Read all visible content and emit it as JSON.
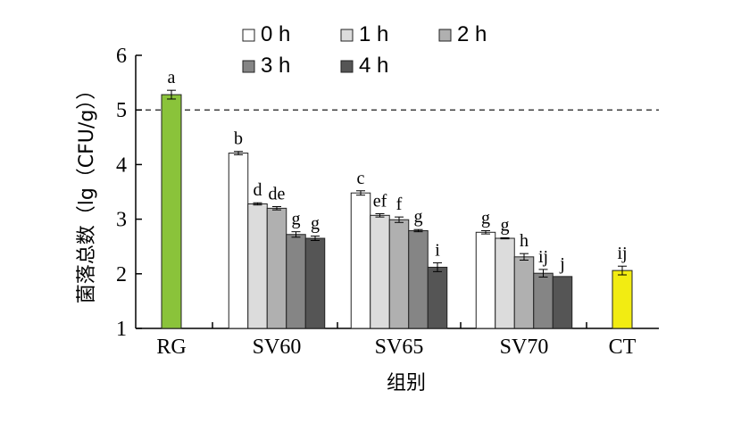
{
  "chart_data": {
    "type": "bar",
    "xlabel": "组别",
    "ylabel": "菌落总数（lg（CFU/g））",
    "ylim": [
      1,
      6
    ],
    "yticks": [
      1,
      2,
      3,
      4,
      5,
      6
    ],
    "reference_line": {
      "y": 5,
      "style": "dashed"
    },
    "legend_position": "top",
    "groups": [
      {
        "label": "RG",
        "bars": [
          {
            "series": "RG",
            "value": 5.28,
            "error": 0.08,
            "sig": "a",
            "color": "#8ac33a"
          }
        ]
      },
      {
        "label": "SV60",
        "bars": [
          {
            "series": "0 h",
            "value": 4.21,
            "error": 0.03,
            "sig": "b"
          },
          {
            "series": "1 h",
            "value": 3.28,
            "error": 0.02,
            "sig": "d"
          },
          {
            "series": "2 h",
            "value": 3.2,
            "error": 0.03,
            "sig": "de"
          },
          {
            "series": "3 h",
            "value": 2.72,
            "error": 0.05,
            "sig": "g"
          },
          {
            "series": "4 h",
            "value": 2.65,
            "error": 0.04,
            "sig": "g"
          }
        ]
      },
      {
        "label": "SV65",
        "bars": [
          {
            "series": "0 h",
            "value": 3.48,
            "error": 0.04,
            "sig": "c"
          },
          {
            "series": "1 h",
            "value": 3.07,
            "error": 0.03,
            "sig": "ef"
          },
          {
            "series": "2 h",
            "value": 2.99,
            "error": 0.05,
            "sig": "f"
          },
          {
            "series": "3 h",
            "value": 2.79,
            "error": 0.02,
            "sig": "g"
          },
          {
            "series": "4 h",
            "value": 2.12,
            "error": 0.08,
            "sig": "i"
          }
        ]
      },
      {
        "label": "SV70",
        "bars": [
          {
            "series": "0 h",
            "value": 2.76,
            "error": 0.03,
            "sig": "g"
          },
          {
            "series": "1 h",
            "value": 2.65,
            "error": 0.01,
            "sig": "g"
          },
          {
            "series": "2 h",
            "value": 2.31,
            "error": 0.06,
            "sig": "h"
          },
          {
            "series": "3 h",
            "value": 2.01,
            "error": 0.07,
            "sig": "ij"
          },
          {
            "series": "4 h",
            "value": 1.95,
            "error": 0.0,
            "sig": "j"
          }
        ]
      },
      {
        "label": "CT",
        "bars": [
          {
            "series": "CT",
            "value": 2.06,
            "error": 0.08,
            "sig": "ij",
            "color": "#f2ec12"
          }
        ]
      }
    ],
    "legend": [
      {
        "name": "0 h",
        "color": "#ffffff"
      },
      {
        "name": "1 h",
        "color": "#dcdcdc"
      },
      {
        "name": "2 h",
        "color": "#b0b0b0"
      },
      {
        "name": "3 h",
        "color": "#858585"
      },
      {
        "name": "4 h",
        "color": "#555555"
      }
    ]
  }
}
